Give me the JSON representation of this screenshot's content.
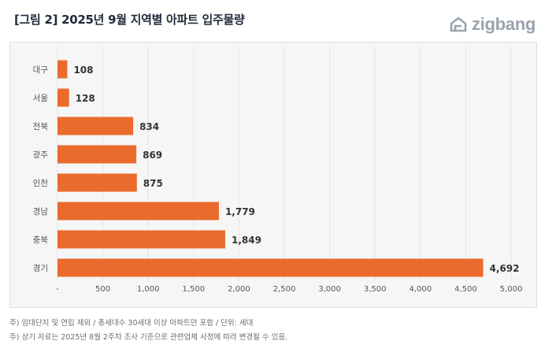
{
  "header": {
    "title": "[그림 2] 2025년 9월 지역별 아파트 입주물량",
    "logo_text": "zigbang",
    "logo_icon": "zigbang-house-icon"
  },
  "colors": {
    "bar": "#ea6b2c",
    "panel_bg": "#f6f6f6",
    "title": "#1f2a3a",
    "value_label": "#333333",
    "axis_label": "#555555",
    "grid": "#e4e4e4"
  },
  "chart_data": {
    "type": "bar",
    "orientation": "horizontal",
    "title": "[그림 2] 2025년 9월 지역별 아파트 입주물량",
    "categories": [
      "대구",
      "서울",
      "전북",
      "광주",
      "인천",
      "경남",
      "충북",
      "경기"
    ],
    "values": [
      108,
      128,
      834,
      869,
      875,
      1779,
      1849,
      4692
    ],
    "value_labels": [
      "108",
      "128",
      "834",
      "869",
      "875",
      "1,779",
      "1,849",
      "4,692"
    ],
    "xlim": [
      0,
      5000
    ],
    "x_ticks": [
      0,
      500,
      1000,
      1500,
      2000,
      2500,
      3000,
      3500,
      4000,
      4500,
      5000
    ],
    "x_tick_labels": [
      "-",
      "500",
      "1,000",
      "1,500",
      "2,000",
      "2,500",
      "3,000",
      "3,500",
      "4,000",
      "4,500",
      "5,000"
    ],
    "xlabel": "",
    "ylabel": "",
    "unit": "세대",
    "grid": true,
    "legend": "none"
  },
  "footnotes": [
    "주) 임대단지 및 연립 제외 / 총세대수 30세대 이상 아파트만 포함 / 단위: 세대",
    "주) 상기 자료는 2025년 8월 2주차 조사 기준으로 관련업체 사정에 따라 변경될 수 있음."
  ]
}
